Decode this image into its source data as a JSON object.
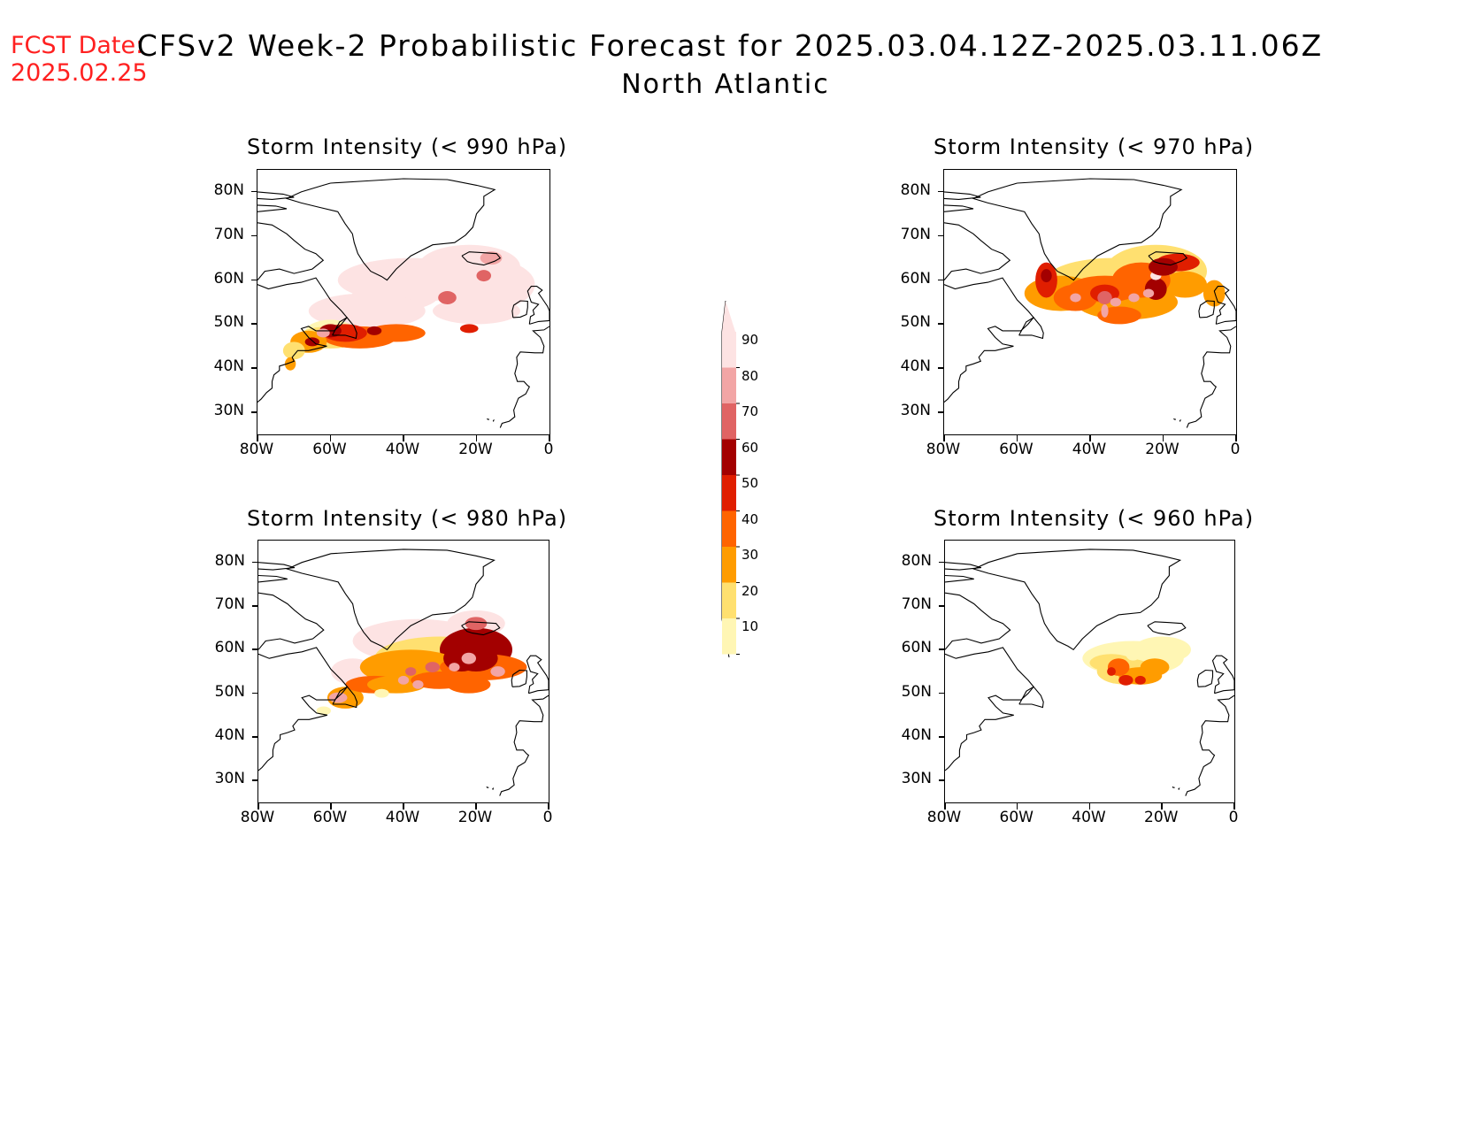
{
  "header": {
    "fcst_label": "FCST Date:",
    "fcst_date": "2025.02.25",
    "title": "CFSv2 Week-2 Probabilistic Forecast for 2025.03.04.12Z-2025.03.11.06Z",
    "subtitle": "North Atlantic"
  },
  "axes": {
    "lat_labels": [
      "80N",
      "70N",
      "60N",
      "50N",
      "40N",
      "30N"
    ],
    "lon_labels": [
      "80W",
      "60W",
      "40W",
      "20W",
      "0"
    ]
  },
  "panels": [
    {
      "id": "p990",
      "title": "Storm Intensity (< 990 hPa)"
    },
    {
      "id": "p970",
      "title": "Storm Intensity (< 970 hPa)"
    },
    {
      "id": "p980",
      "title": "Storm Intensity (< 980 hPa)"
    },
    {
      "id": "p960",
      "title": "Storm Intensity (< 960 hPa)"
    }
  ],
  "colorbar": {
    "labels": [
      "90",
      "80",
      "70",
      "60",
      "50",
      "40",
      "30",
      "20",
      "10"
    ],
    "colors": [
      "#fde3e3",
      "#f2a5a5",
      "#e06464",
      "#a30000",
      "#e01e00",
      "#ff6400",
      "#ff9c00",
      "#ffe070",
      "#fff6b4"
    ]
  }
}
